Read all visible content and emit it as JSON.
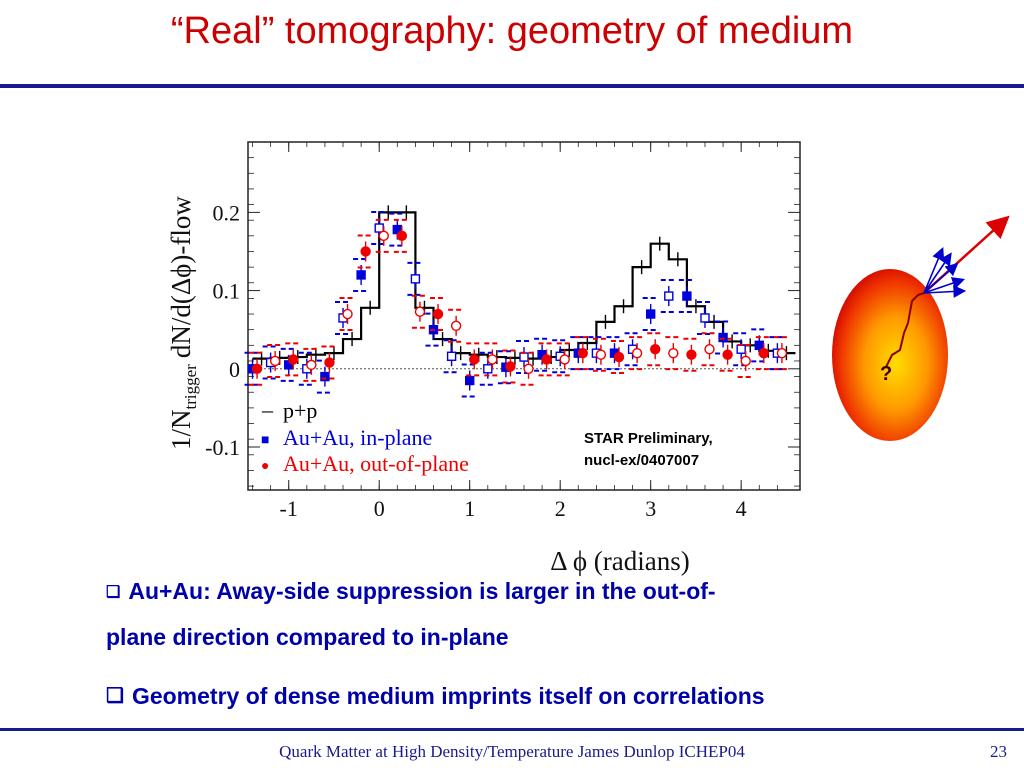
{
  "slide": {
    "title": "“Real” tomography: geometry of medium",
    "bullets": [
      {
        "marker": "❑",
        "text_line1": "Au+Au: Away-side suppression is larger in the out-of-",
        "text_line2": "plane direction compared to in-plane"
      },
      {
        "marker": "❑",
        "text": "Geometry of dense medium imprints itself on correlations"
      }
    ],
    "footer": "Quark Matter at High Density/Temperature James Dunlop ICHEP04",
    "page_number": "23",
    "colors": {
      "title": "#cc0000",
      "rule": "#1a1a8c",
      "bullet_text": "#0000aa",
      "footer": "#1a1a8c"
    }
  },
  "diagram": {
    "question_mark": "?",
    "colors": {
      "medium_outer": "#cc0000",
      "medium_inner": "#ffdd00",
      "jets": "#0000cc",
      "leading": "#dd0000",
      "path": "#880000"
    }
  },
  "chart_data": {
    "type": "line",
    "xlabel": "Δ ϕ (radians)",
    "ylabel_main": "1/N",
    "ylabel_sub": "trigger",
    "ylabel_tail": "dN/d(Δϕ)-flow",
    "xlim": [
      -1.45,
      4.65
    ],
    "ylim": [
      -0.155,
      0.29
    ],
    "xticks": [
      -1,
      0,
      1,
      2,
      3,
      4
    ],
    "xtick_labels": [
      "-1",
      "0",
      "1",
      "2",
      "3",
      "4"
    ],
    "yticks": [
      -0.1,
      0,
      0.1,
      0.2
    ],
    "ytick_labels": [
      "-0.1",
      "0",
      "0.1",
      "0.2"
    ],
    "zero_line": true,
    "annotation_line1": "STAR Preliminary,",
    "annotation_line2": "nucl-ex/0407007",
    "legend": [
      {
        "label": "p+p",
        "symbol": "–",
        "color": "#000000"
      },
      {
        "label": "Au+Au, in-plane",
        "symbol": "■",
        "color": "#0000dd"
      },
      {
        "label": "Au+Au, out-of-plane",
        "symbol": "●",
        "color": "#ee0000"
      }
    ],
    "series": [
      {
        "name": "p+p",
        "color": "#000000",
        "x": [
          -1.3,
          -1.1,
          -0.9,
          -0.7,
          -0.5,
          -0.3,
          -0.1,
          0.1,
          0.3,
          0.5,
          0.7,
          0.9,
          1.1,
          1.3,
          1.5,
          1.7,
          1.9,
          2.1,
          2.3,
          2.5,
          2.7,
          2.9,
          3.1,
          3.3,
          3.5,
          3.7,
          3.9,
          4.1,
          4.3,
          4.5
        ],
        "y": [
          0.013,
          0.014,
          0.015,
          0.018,
          0.02,
          0.038,
          0.078,
          0.2,
          0.2,
          0.078,
          0.038,
          0.02,
          0.018,
          0.015,
          0.014,
          0.013,
          0.015,
          0.024,
          0.033,
          0.06,
          0.08,
          0.13,
          0.16,
          0.14,
          0.08,
          0.06,
          0.035,
          0.03,
          0.023,
          0.02
        ]
      },
      {
        "name": "Au+Au, in-plane",
        "color": "#0000dd",
        "x": [
          -1.4,
          -1.2,
          -1.0,
          -0.8,
          -0.6,
          -0.4,
          -0.2,
          0.0,
          0.2,
          0.4,
          0.6,
          0.8,
          1.0,
          1.2,
          1.4,
          1.6,
          1.8,
          2.0,
          2.2,
          2.4,
          2.6,
          2.8,
          3.0,
          3.2,
          3.4,
          3.6,
          3.8,
          4.0,
          4.2,
          4.4
        ],
        "y": [
          0.0,
          0.008,
          0.005,
          0.0,
          -0.01,
          0.065,
          0.12,
          0.18,
          0.178,
          0.115,
          0.05,
          0.016,
          -0.015,
          0.0,
          0.002,
          0.015,
          0.018,
          0.016,
          0.02,
          0.02,
          0.02,
          0.025,
          0.07,
          0.093,
          0.093,
          0.065,
          0.04,
          0.025,
          0.03,
          0.02
        ]
      },
      {
        "name": "Au+Au, out-of-plane",
        "color": "#ee0000",
        "x": [
          -1.35,
          -1.15,
          -0.95,
          -0.75,
          -0.55,
          -0.35,
          -0.15,
          0.05,
          0.25,
          0.45,
          0.65,
          0.85,
          1.05,
          1.25,
          1.45,
          1.65,
          1.85,
          2.05,
          2.25,
          2.45,
          2.65,
          2.85,
          3.05,
          3.25,
          3.45,
          3.65,
          3.85,
          4.05,
          4.25,
          4.45
        ],
        "y": [
          0.0,
          0.01,
          0.012,
          0.005,
          0.008,
          0.07,
          0.15,
          0.17,
          0.17,
          0.073,
          0.07,
          0.055,
          0.012,
          0.012,
          0.003,
          0.0,
          0.012,
          0.012,
          0.02,
          0.018,
          0.015,
          0.02,
          0.025,
          0.02,
          0.018,
          0.025,
          0.018,
          0.01,
          0.02,
          0.02
        ]
      }
    ]
  }
}
